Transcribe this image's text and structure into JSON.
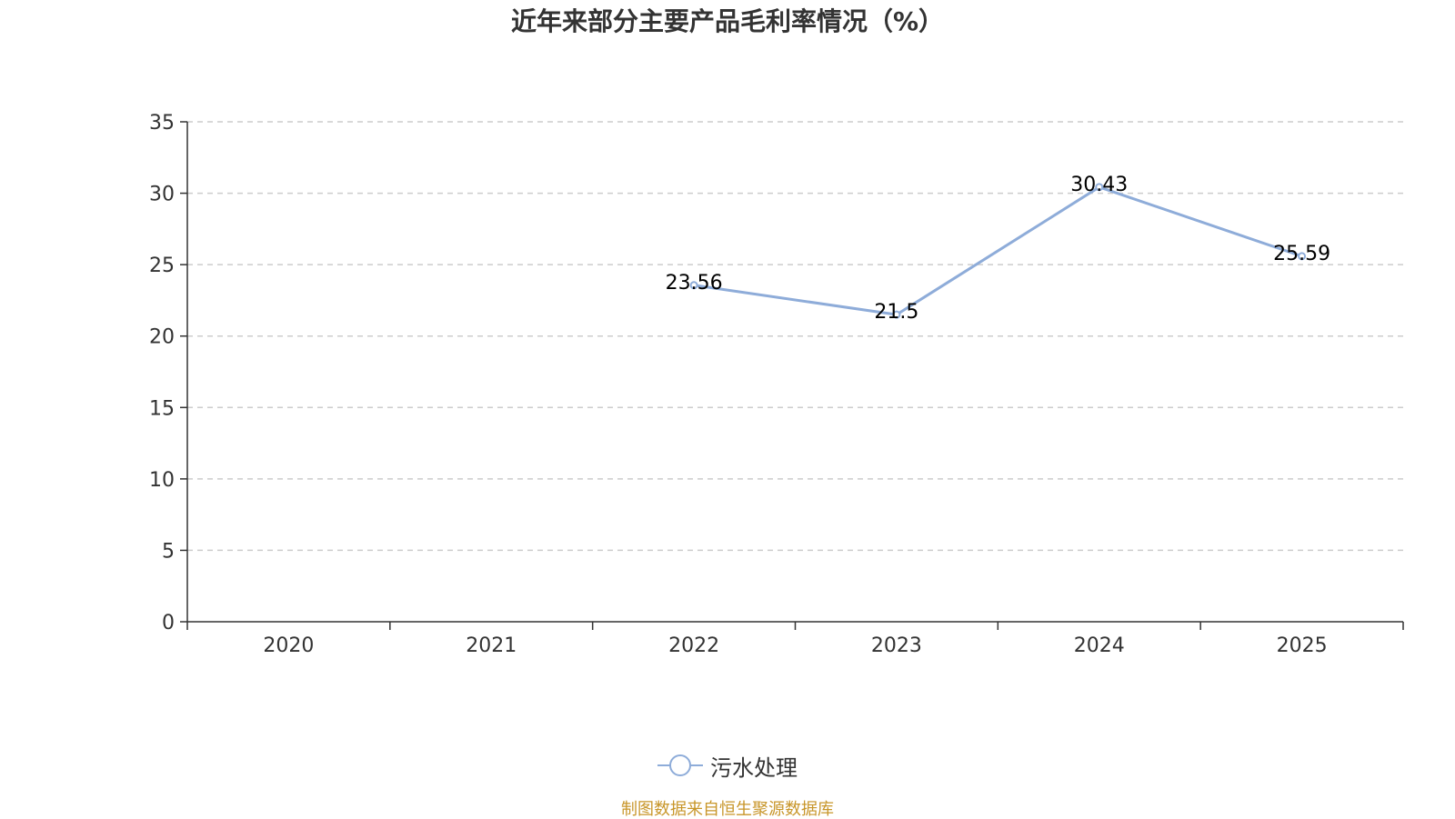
{
  "title": "近年来部分主要产品毛利率情况（%）",
  "chart_data": {
    "type": "line",
    "title": "近年来部分主要产品毛利率情况（%）",
    "categories": [
      "2020",
      "2021",
      "2022",
      "2023",
      "2024",
      "2025"
    ],
    "series": [
      {
        "name": "污水处理",
        "values": [
          null,
          null,
          23.56,
          21.5,
          30.43,
          25.59
        ],
        "labels": [
          null,
          null,
          "23.56",
          "21.5",
          "30.43",
          "25.59"
        ],
        "color": "#8eacd9"
      }
    ],
    "y_ticks": [
      "0",
      "5",
      "10",
      "15",
      "20",
      "25",
      "30",
      "35"
    ],
    "ylim": [
      0,
      35
    ],
    "xlabel": "",
    "ylabel": "",
    "grid": true,
    "legend_position": "bottom-center"
  },
  "legend": {
    "label": "污水处理"
  },
  "source": {
    "text": "制图数据来自恒生聚源数据库",
    "color": "#c8962a"
  },
  "colors": {
    "axis": "#333333",
    "grid": "#cccccc",
    "text": "#333333"
  }
}
